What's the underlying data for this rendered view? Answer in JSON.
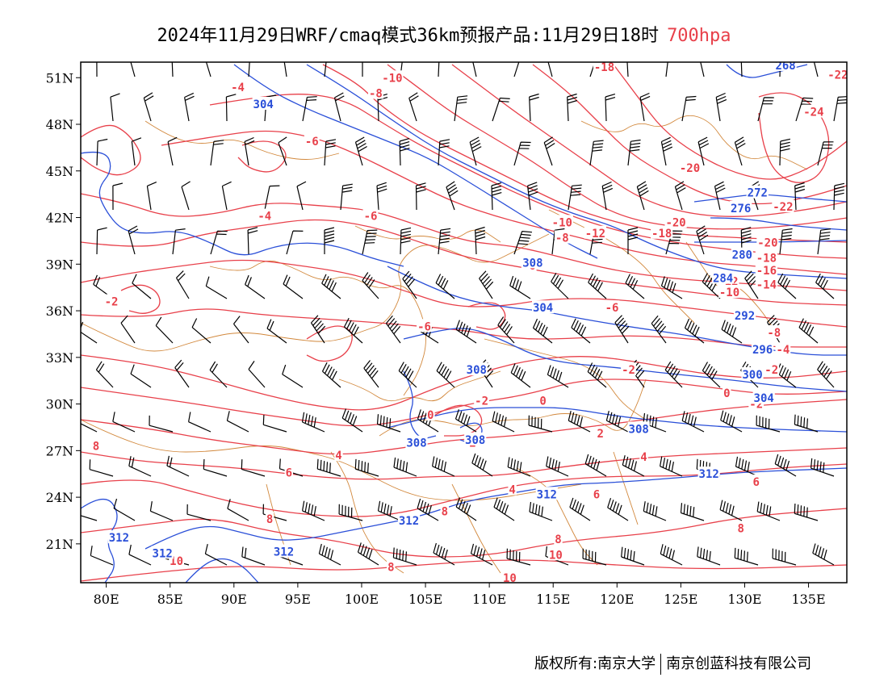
{
  "title": {
    "main": "2024年11月29日WRF/cmaq模式36km预报产品:11月29日18时",
    "level": "700hpa"
  },
  "colors": {
    "temperature_contour": "#e8404a",
    "height_contour": "#2a4fd8",
    "border": "#d2883c",
    "wind_barb": "#000000"
  },
  "map": {
    "lon_range": [
      78,
      138
    ],
    "lat_range": [
      18.5,
      52
    ],
    "lon_ticks": [
      "80E",
      "85E",
      "90E",
      "95E",
      "100E",
      "105E",
      "110E",
      "115E",
      "120E",
      "125E",
      "130E",
      "135E"
    ],
    "lat_ticks": [
      "21N",
      "24N",
      "27N",
      "30N",
      "33N",
      "36N",
      "39N",
      "42N",
      "45N",
      "48N",
      "51N"
    ],
    "temperature_labels": [
      {
        "text": "-4",
        "lon": 90.3,
        "lat": 50.4
      },
      {
        "text": "-10",
        "lon": 102.4,
        "lat": 51.0
      },
      {
        "text": "-8",
        "lon": 101.1,
        "lat": 50.0
      },
      {
        "text": "-18",
        "lon": 119.0,
        "lat": 51.7
      },
      {
        "text": "-22",
        "lon": 137.3,
        "lat": 51.2
      },
      {
        "text": "-24",
        "lon": 135.4,
        "lat": 48.8
      },
      {
        "text": "-6",
        "lon": 96.1,
        "lat": 46.9
      },
      {
        "text": "-20",
        "lon": 125.7,
        "lat": 45.2
      },
      {
        "text": "-22",
        "lon": 133.0,
        "lat": 42.7
      },
      {
        "text": "-4",
        "lon": 92.4,
        "lat": 42.1
      },
      {
        "text": "-6",
        "lon": 100.7,
        "lat": 42.1
      },
      {
        "text": "-10",
        "lon": 115.7,
        "lat": 41.7
      },
      {
        "text": "-12",
        "lon": 118.3,
        "lat": 41.0
      },
      {
        "text": "-8",
        "lon": 115.7,
        "lat": 40.7
      },
      {
        "text": "-20",
        "lon": 124.6,
        "lat": 41.7
      },
      {
        "text": "-18",
        "lon": 123.5,
        "lat": 41.0
      },
      {
        "text": "-20",
        "lon": 131.8,
        "lat": 40.4
      },
      {
        "text": "-18",
        "lon": 131.7,
        "lat": 39.4
      },
      {
        "text": "-16",
        "lon": 131.7,
        "lat": 38.6
      },
      {
        "text": "-6",
        "lon": 113.1,
        "lat": 38.9
      },
      {
        "text": "-12",
        "lon": 128.7,
        "lat": 37.9
      },
      {
        "text": "-14",
        "lon": 131.7,
        "lat": 37.7
      },
      {
        "text": "-10",
        "lon": 128.8,
        "lat": 37.2
      },
      {
        "text": "-2",
        "lon": 80.4,
        "lat": 36.6
      },
      {
        "text": "-6",
        "lon": 119.6,
        "lat": 36.2
      },
      {
        "text": "-6",
        "lon": 104.9,
        "lat": 35.0
      },
      {
        "text": "-8",
        "lon": 132.3,
        "lat": 34.6
      },
      {
        "text": "-4",
        "lon": 133.0,
        "lat": 33.5
      },
      {
        "text": "-2",
        "lon": 120.9,
        "lat": 32.2
      },
      {
        "text": "-2",
        "lon": 132.1,
        "lat": 32.2
      },
      {
        "text": "0",
        "lon": 128.6,
        "lat": 30.7
      },
      {
        "text": "-2",
        "lon": 109.4,
        "lat": 30.2
      },
      {
        "text": "0",
        "lon": 114.2,
        "lat": 30.2
      },
      {
        "text": "-2",
        "lon": 130.9,
        "lat": 30.0
      },
      {
        "text": "0",
        "lon": 105.4,
        "lat": 29.3
      },
      {
        "text": "2",
        "lon": 118.7,
        "lat": 28.1
      },
      {
        "text": "2",
        "lon": 108.7,
        "lat": 27.5
      },
      {
        "text": "8",
        "lon": 79.2,
        "lat": 27.3
      },
      {
        "text": "4",
        "lon": 98.2,
        "lat": 26.7
      },
      {
        "text": "4",
        "lon": 122.1,
        "lat": 26.6
      },
      {
        "text": "6",
        "lon": 94.3,
        "lat": 25.6
      },
      {
        "text": "6",
        "lon": 130.9,
        "lat": 25.0
      },
      {
        "text": "4",
        "lon": 111.8,
        "lat": 24.5
      },
      {
        "text": "6",
        "lon": 118.4,
        "lat": 24.2
      },
      {
        "text": "8",
        "lon": 106.5,
        "lat": 23.1
      },
      {
        "text": "8",
        "lon": 92.8,
        "lat": 22.6
      },
      {
        "text": "8",
        "lon": 115.4,
        "lat": 21.3
      },
      {
        "text": "8",
        "lon": 129.7,
        "lat": 22.0
      },
      {
        "text": "10",
        "lon": 115.2,
        "lat": 20.3
      },
      {
        "text": "10",
        "lon": 85.5,
        "lat": 19.9
      },
      {
        "text": "8",
        "lon": 102.3,
        "lat": 19.5
      },
      {
        "text": "10",
        "lon": 111.6,
        "lat": 18.8
      }
    ],
    "height_labels": [
      {
        "text": "304",
        "lon": 92.3,
        "lat": 49.3
      },
      {
        "text": "268",
        "lon": 133.2,
        "lat": 51.8
      },
      {
        "text": "272",
        "lon": 131.0,
        "lat": 43.6
      },
      {
        "text": "276",
        "lon": 129.7,
        "lat": 42.6
      },
      {
        "text": "280",
        "lon": 129.8,
        "lat": 39.6
      },
      {
        "text": "284",
        "lon": 128.3,
        "lat": 38.1
      },
      {
        "text": "308",
        "lon": 113.4,
        "lat": 39.1
      },
      {
        "text": "304",
        "lon": 114.2,
        "lat": 36.2
      },
      {
        "text": "292",
        "lon": 130.0,
        "lat": 35.7
      },
      {
        "text": "296",
        "lon": 131.4,
        "lat": 33.5
      },
      {
        "text": "308",
        "lon": 109.0,
        "lat": 32.2
      },
      {
        "text": "300",
        "lon": 130.6,
        "lat": 31.9
      },
      {
        "text": "304",
        "lon": 131.5,
        "lat": 30.4
      },
      {
        "text": "308",
        "lon": 121.7,
        "lat": 28.4
      },
      {
        "text": "308",
        "lon": 108.9,
        "lat": 27.7
      },
      {
        "text": "308",
        "lon": 104.3,
        "lat": 27.5
      },
      {
        "text": "312",
        "lon": 127.2,
        "lat": 25.5
      },
      {
        "text": "312",
        "lon": 114.5,
        "lat": 24.2
      },
      {
        "text": "312",
        "lon": 103.7,
        "lat": 22.5
      },
      {
        "text": "312",
        "lon": 81.0,
        "lat": 21.4
      },
      {
        "text": "312",
        "lon": 84.4,
        "lat": 20.4
      },
      {
        "text": "312",
        "lon": 93.9,
        "lat": 20.5
      }
    ]
  },
  "footer": {
    "left": "版权所有:南京大学",
    "right": "南京创蓝科技有限公司"
  }
}
